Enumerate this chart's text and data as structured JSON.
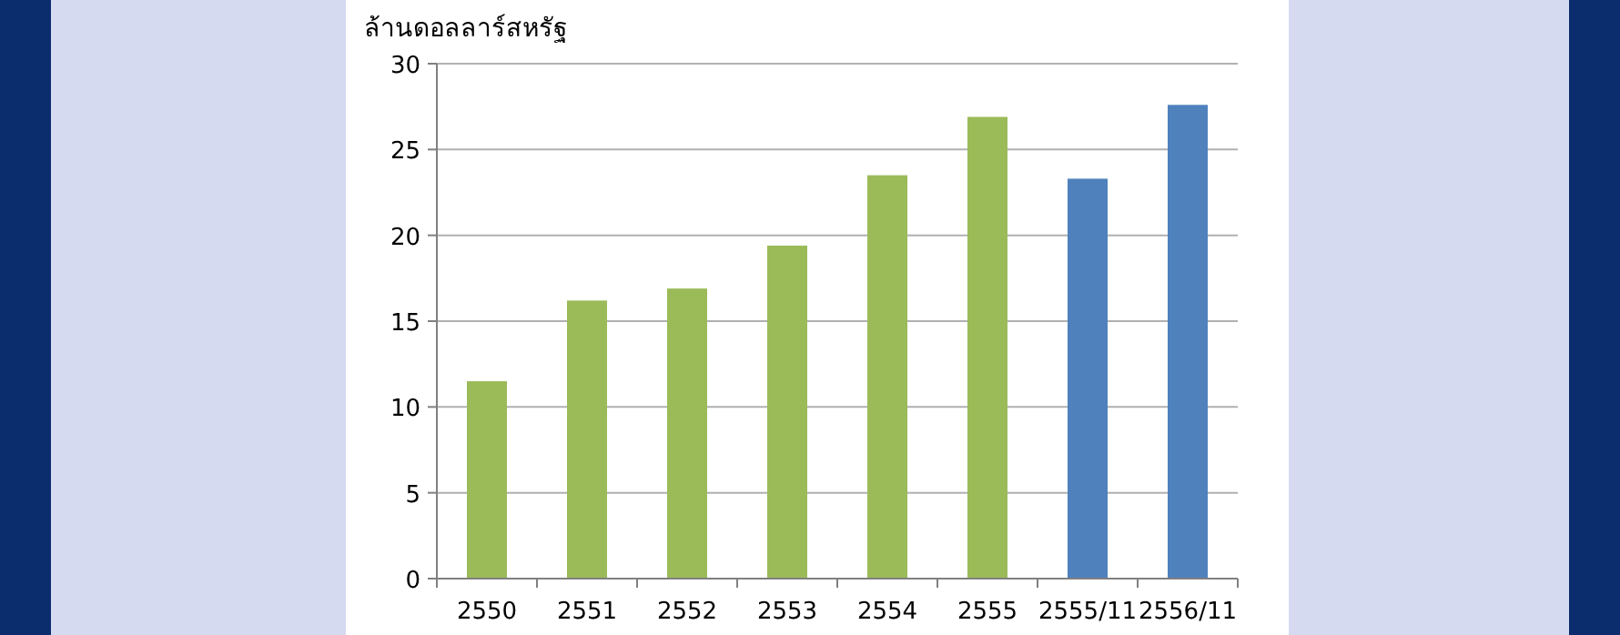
{
  "chart_data": {
    "type": "bar",
    "ylabel": "ล้านดอลลาร์สหรัฐ",
    "categories": [
      "2550",
      "2551",
      "2552",
      "2553",
      "2554",
      "2555",
      "2555/11",
      "2556/11"
    ],
    "values": [
      11.5,
      16.2,
      16.9,
      19.4,
      23.5,
      26.9,
      23.3,
      27.6
    ],
    "colors": [
      "#9bbb59",
      "#9bbb59",
      "#9bbb59",
      "#9bbb59",
      "#9bbb59",
      "#9bbb59",
      "#4f81bd",
      "#4f81bd"
    ],
    "ylim": [
      0,
      30
    ],
    "yticks": [
      0,
      5,
      10,
      15,
      20,
      25,
      30
    ],
    "grid": "y"
  }
}
